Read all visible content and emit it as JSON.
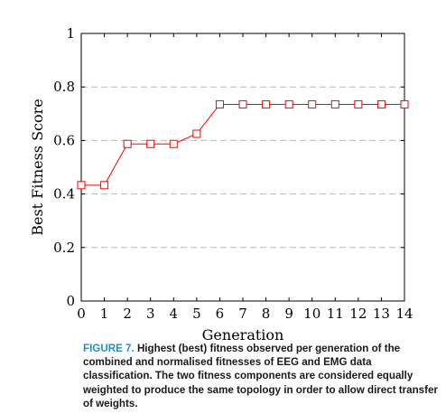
{
  "chart_data": {
    "type": "line",
    "xlabel": "Generation",
    "ylabel": "Best Fitness Score",
    "xlim": [
      0,
      14
    ],
    "ylim": [
      0,
      1
    ],
    "x_ticks": [
      0,
      1,
      2,
      3,
      4,
      5,
      6,
      7,
      8,
      9,
      10,
      11,
      12,
      13,
      14
    ],
    "y_ticks": [
      0,
      0.2,
      0.4,
      0.6,
      0.8,
      1
    ],
    "grid": "horizontal dashed",
    "series": [
      {
        "color": "#ff0000",
        "marker": "square",
        "x": [
          0,
          1,
          2,
          3,
          4,
          5,
          6,
          7,
          8,
          9,
          10,
          11,
          12,
          13,
          14
        ],
        "values": [
          0.433,
          0.433,
          0.587,
          0.587,
          0.587,
          0.625,
          0.735,
          0.735,
          0.735,
          0.735,
          0.735,
          0.735,
          0.735,
          0.735,
          0.735
        ]
      }
    ]
  },
  "caption": {
    "label": "FIGURE 7.",
    "text": "Highest (best) fitness observed per generation of the combined and normalised fitnesses of EEG and EMG data classification. The two fitness components are considered equally weighted to produce the same topology in order to allow direct transfer of weights."
  }
}
